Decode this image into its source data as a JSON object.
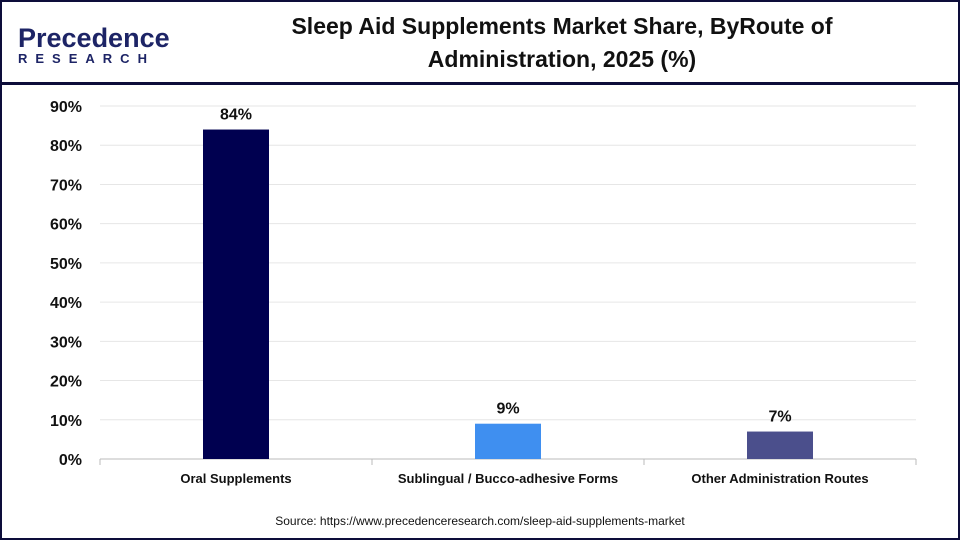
{
  "logo": {
    "line1": "Precedence",
    "line2": "RESEARCH"
  },
  "title": "Sleep Aid Supplements Market Share, ByRoute of Administration, 2025 (%)",
  "source": "Source: https://www.precedenceresearch.com/sleep-aid-supplements-market",
  "chart_data": {
    "type": "bar",
    "title": "Sleep Aid Supplements Market Share, ByRoute of Administration, 2025 (%)",
    "categories": [
      "Oral Supplements",
      "Sublingual / Bucco-adhesive Forms",
      "Other Administration Routes"
    ],
    "values": [
      84,
      9,
      7
    ],
    "data_labels": [
      "84%",
      "9%",
      "7%"
    ],
    "colors": [
      "#000050",
      "#3f8ff0",
      "#4b4f8c"
    ],
    "ylim": [
      0,
      90
    ],
    "yticks": [
      "0%",
      "10%",
      "20%",
      "30%",
      "40%",
      "50%",
      "60%",
      "70%",
      "80%",
      "90%"
    ],
    "grid": true,
    "xlabel": "",
    "ylabel": ""
  }
}
